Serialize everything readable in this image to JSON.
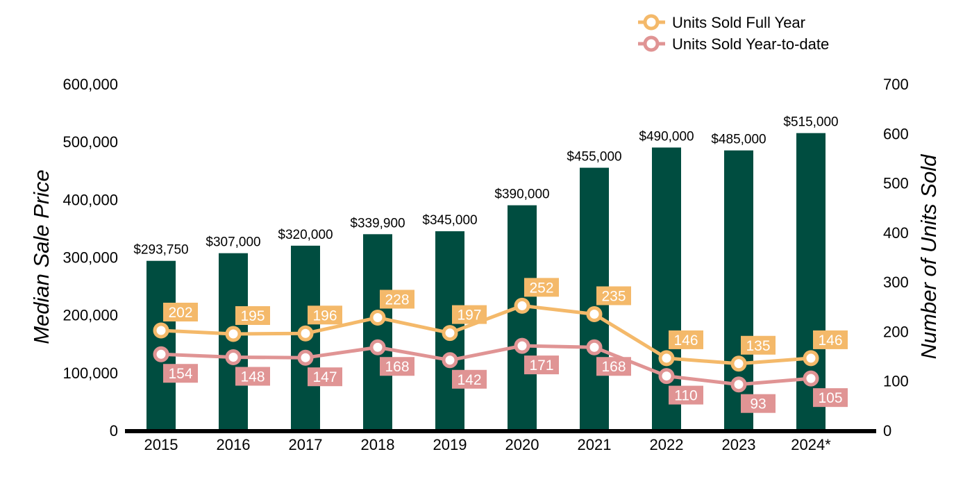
{
  "chart_data": {
    "type": "bar",
    "categories": [
      "2015",
      "2016",
      "2017",
      "2018",
      "2019",
      "2020",
      "2021",
      "2022",
      "2023",
      "2024*"
    ],
    "ylabel": "Median Sale Price",
    "y2label": "Number of Units Sold",
    "ylim": [
      0,
      600000
    ],
    "y2lim": [
      0,
      700
    ],
    "yticks": [
      "0",
      "100,000",
      "200,000",
      "300,000",
      "400,000",
      "500,000",
      "600,000"
    ],
    "y2ticks": [
      "0",
      "100",
      "200",
      "300",
      "400",
      "500",
      "600",
      "700"
    ],
    "legend_position": "top-right",
    "series": [
      {
        "kind": "bar",
        "axis": "left",
        "color": "#004d40",
        "values": [
          293750,
          307000,
          320000,
          339900,
          345000,
          390000,
          455000,
          490000,
          485000,
          515000
        ],
        "labels": [
          "$293,750",
          "$307,000",
          "$320,000",
          "$339,900",
          "$345,000",
          "$390,000",
          "$455,000",
          "$490,000",
          "$485,000",
          "$515,000"
        ]
      },
      {
        "kind": "line",
        "axis": "right",
        "name": "Units Sold Full Year",
        "color": "#f4b96a",
        "values": [
          202,
          195,
          196,
          228,
          197,
          252,
          235,
          146,
          135,
          146
        ],
        "labels": [
          "202",
          "195",
          "196",
          "228",
          "197",
          "252",
          "235",
          "146",
          "135",
          "146"
        ]
      },
      {
        "kind": "line",
        "axis": "right",
        "name": "Units Sold Year-to-date",
        "color": "#e09494",
        "values": [
          154,
          148,
          147,
          168,
          142,
          171,
          168,
          110,
          93,
          105
        ],
        "labels": [
          "154",
          "148",
          "147",
          "168",
          "142",
          "171",
          "168",
          "110",
          "93",
          "105"
        ]
      }
    ]
  }
}
